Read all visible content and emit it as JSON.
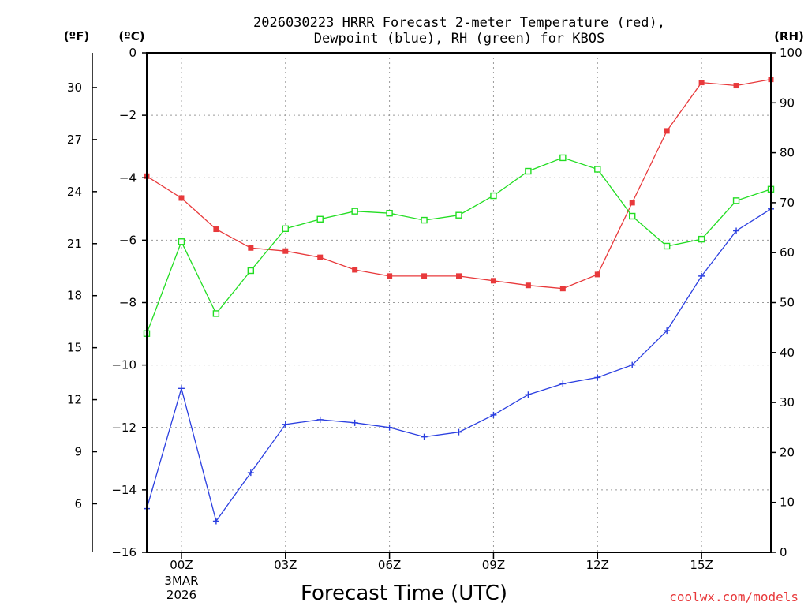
{
  "title_line1": "2026030223 HRRR Forecast 2-meter Temperature (red),",
  "title_line2": "Dewpoint (blue), RH (green) for KBOS",
  "unit_f": "(ºF)",
  "unit_c": "(ºC)",
  "unit_rh": "(RH)",
  "date_month": "3MAR",
  "date_year": "2026",
  "credit": "coolwx.com/models",
  "colors": {
    "temperature": "#e8393b",
    "dewpoint": "#2b3fe0",
    "rh": "#22dd22",
    "grid": "#9a9a9a"
  },
  "chart_data": {
    "type": "line",
    "title": "2026030223 HRRR Forecast 2-meter Temperature (red), Dewpoint (blue), RH (green) for KBOS",
    "xlabel": "Forecast Time (UTC)",
    "ylabel_left": "(ºC)",
    "ylabel_left_outer": "(ºF)",
    "ylabel_right": "(RH)",
    "x_hours": [
      -1,
      0,
      1,
      2,
      3,
      4,
      5,
      6,
      7,
      8,
      9,
      10,
      11,
      12,
      13,
      14,
      15,
      16,
      17
    ],
    "xlim": [
      -1,
      17
    ],
    "x_ticks": [
      {
        "hour": 0,
        "label": "00Z"
      },
      {
        "hour": 3,
        "label": "03Z"
      },
      {
        "hour": 6,
        "label": "06Z"
      },
      {
        "hour": 9,
        "label": "09Z"
      },
      {
        "hour": 12,
        "label": "12Z"
      },
      {
        "hour": 15,
        "label": "15Z"
      }
    ],
    "ylim_c": [
      -16,
      0
    ],
    "yticks_c": [
      0,
      -2,
      -4,
      -6,
      -8,
      -10,
      -12,
      -14,
      -16
    ],
    "yticks_f": [
      30,
      27,
      24,
      21,
      18,
      15,
      12,
      9,
      6
    ],
    "ylim_rh": [
      0,
      100
    ],
    "yticks_rh": [
      0,
      10,
      20,
      30,
      40,
      50,
      60,
      70,
      80,
      90,
      100
    ],
    "grid": true,
    "series": [
      {
        "name": "Temperature",
        "axis": "c",
        "marker": "filled-square",
        "color": "#e8393b",
        "values": [
          -3.95,
          -4.65,
          -5.65,
          -6.25,
          -6.35,
          -6.55,
          -6.95,
          -7.15,
          -7.15,
          -7.15,
          -7.3,
          -7.45,
          -7.55,
          -7.1,
          -4.8,
          -2.5,
          -0.95,
          -1.05,
          -0.85
        ]
      },
      {
        "name": "Dewpoint",
        "axis": "c",
        "marker": "plus",
        "color": "#2b3fe0",
        "values": [
          -14.6,
          -10.75,
          -15.0,
          -13.45,
          -11.9,
          -11.75,
          -11.85,
          -12.0,
          -12.3,
          -12.15,
          -11.6,
          -10.95,
          -10.6,
          -10.4,
          -10.0,
          -8.9,
          -7.15,
          -5.7,
          -5.0
        ]
      },
      {
        "name": "RH",
        "axis": "rh",
        "marker": "open-square",
        "color": "#22dd22",
        "values": [
          43.8,
          62.2,
          47.8,
          56.4,
          64.8,
          66.7,
          68.3,
          67.9,
          66.5,
          67.5,
          71.4,
          76.3,
          79.0,
          76.7,
          67.3,
          61.3,
          62.7,
          70.4,
          72.7
        ]
      }
    ]
  }
}
